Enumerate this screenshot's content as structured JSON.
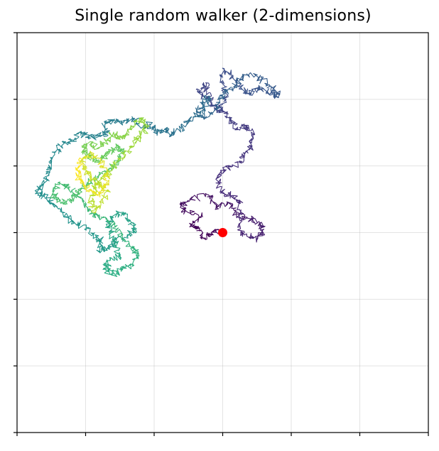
{
  "chart_data": {
    "type": "line",
    "title": "Single random walker (2-dimensions)",
    "xlabel": "",
    "ylabel": "",
    "xlim": [
      -300,
      300
    ],
    "ylim": [
      -300,
      300
    ],
    "xticks": [
      -300,
      -200,
      -100,
      0,
      100,
      200,
      300
    ],
    "yticks": [
      -300,
      -200,
      -100,
      0,
      100,
      200,
      300
    ],
    "tick_labels_visible": false,
    "grid": true,
    "colormap": "viridis",
    "start_point": {
      "x": 0,
      "y": 0,
      "color": "#ff0000"
    },
    "series": [
      {
        "values": [
          [
            0,
            0
          ],
          [
            -14,
            2
          ],
          [
            -28,
            -8
          ],
          [
            -34,
            4
          ],
          [
            -45,
            10
          ],
          [
            -30,
            25
          ],
          [
            -55,
            32
          ],
          [
            -60,
            42
          ],
          [
            -48,
            50
          ],
          [
            -20,
            56
          ],
          [
            -10,
            38
          ],
          [
            8,
            45
          ],
          [
            20,
            28
          ],
          [
            35,
            22
          ],
          [
            55,
            15
          ],
          [
            60,
            5
          ],
          [
            50,
            -10
          ],
          [
            35,
            -5
          ],
          [
            22,
            8
          ],
          [
            26,
            30
          ],
          [
            25,
            48
          ],
          [
            12,
            55
          ],
          [
            0,
            60
          ],
          [
            -10,
            80
          ],
          [
            2,
            95
          ],
          [
            25,
            105
          ],
          [
            30,
            120
          ],
          [
            42,
            130
          ],
          [
            45,
            148
          ],
          [
            35,
            160
          ],
          [
            22,
            158
          ],
          [
            12,
            170
          ],
          [
            0,
            183
          ],
          [
            -12,
            190
          ],
          [
            -20,
            210
          ],
          [
            -28,
            225
          ],
          [
            -35,
            210
          ],
          [
            -20,
            200
          ],
          [
            -8,
            180
          ],
          [
            5,
            200
          ],
          [
            0,
            228
          ],
          [
            2,
            245
          ],
          [
            15,
            232
          ],
          [
            28,
            215
          ],
          [
            40,
            208
          ],
          [
            52,
            218
          ],
          [
            65,
            212
          ],
          [
            78,
            205
          ],
          [
            80,
            210
          ],
          [
            68,
            222
          ],
          [
            52,
            232
          ],
          [
            35,
            238
          ],
          [
            20,
            225
          ],
          [
            10,
            215
          ],
          [
            0,
            210
          ],
          [
            -5,
            195
          ],
          [
            -15,
            180
          ],
          [
            -28,
            172
          ],
          [
            -38,
            182
          ],
          [
            -28,
            195
          ],
          [
            -20,
            205
          ],
          [
            -30,
            180
          ],
          [
            -48,
            170
          ],
          [
            -58,
            158
          ],
          [
            -75,
            148
          ],
          [
            -85,
            155
          ],
          [
            -95,
            150
          ],
          [
            -105,
            162
          ],
          [
            -115,
            158
          ],
          [
            -130,
            170
          ],
          [
            -145,
            165
          ],
          [
            -160,
            168
          ],
          [
            -172,
            162
          ],
          [
            -168,
            150
          ],
          [
            -180,
            145
          ],
          [
            -195,
            142
          ],
          [
            -208,
            150
          ],
          [
            -215,
            142
          ],
          [
            -232,
            135
          ],
          [
            -245,
            120
          ],
          [
            -250,
            102
          ],
          [
            -255,
            85
          ],
          [
            -262,
            72
          ],
          [
            -270,
            60
          ],
          [
            -258,
            52
          ],
          [
            -248,
            42
          ],
          [
            -232,
            30
          ],
          [
            -220,
            18
          ],
          [
            -205,
            10
          ],
          [
            -190,
            -2
          ],
          [
            -178,
            -12
          ],
          [
            -180,
            -28
          ],
          [
            -165,
            -25
          ],
          [
            -155,
            -10
          ],
          [
            -140,
            -6
          ],
          [
            -128,
            5
          ],
          [
            -135,
            18
          ],
          [
            -150,
            30
          ],
          [
            -162,
            22
          ],
          [
            -168,
            8
          ],
          [
            -160,
            -8
          ],
          [
            -155,
            -22
          ],
          [
            -152,
            -35
          ],
          [
            -165,
            -42
          ],
          [
            -172,
            -55
          ],
          [
            -162,
            -62
          ],
          [
            -148,
            -58
          ],
          [
            -135,
            -48
          ],
          [
            -122,
            -35
          ],
          [
            -130,
            -22
          ],
          [
            -142,
            -12
          ],
          [
            -155,
            5
          ],
          [
            -170,
            20
          ],
          [
            -188,
            28
          ],
          [
            -200,
            40
          ],
          [
            -212,
            55
          ],
          [
            -225,
            68
          ],
          [
            -238,
            72
          ],
          [
            -248,
            58
          ],
          [
            -235,
            45
          ],
          [
            -222,
            48
          ],
          [
            -210,
            60
          ],
          [
            -198,
            72
          ],
          [
            -185,
            82
          ],
          [
            -170,
            90
          ],
          [
            -160,
            100
          ],
          [
            -150,
            110
          ],
          [
            -145,
            122
          ],
          [
            -155,
            130
          ],
          [
            -165,
            120
          ],
          [
            -175,
            112
          ],
          [
            -188,
            108
          ],
          [
            -198,
            118
          ],
          [
            -205,
            128
          ],
          [
            -192,
            132
          ],
          [
            -180,
            128
          ],
          [
            -170,
            138
          ],
          [
            -160,
            148
          ],
          [
            -150,
            142
          ],
          [
            -140,
            150
          ],
          [
            -128,
            162
          ],
          [
            -118,
            170
          ],
          [
            -110,
            158
          ],
          [
            -120,
            145
          ],
          [
            -130,
            135
          ],
          [
            -138,
            122
          ],
          [
            -150,
            110
          ],
          [
            -160,
            96
          ],
          [
            -172,
            86
          ],
          [
            -182,
            74
          ],
          [
            -190,
            60
          ],
          [
            -192,
            44
          ],
          [
            -185,
            32
          ],
          [
            -175,
            48
          ],
          [
            -168,
            62
          ],
          [
            -178,
            72
          ],
          [
            -192,
            80
          ],
          [
            -200,
            95
          ],
          [
            -205,
            108
          ],
          [
            -195,
            118
          ],
          [
            -182,
            112
          ],
          [
            -175,
            98
          ],
          [
            -168,
            84
          ],
          [
            -172,
            70
          ],
          [
            -180,
            58
          ],
          [
            -190,
            62
          ],
          [
            -200,
            70
          ],
          [
            -210,
            82
          ],
          [
            -212,
            95
          ],
          [
            -205,
            110
          ]
        ]
      }
    ]
  }
}
